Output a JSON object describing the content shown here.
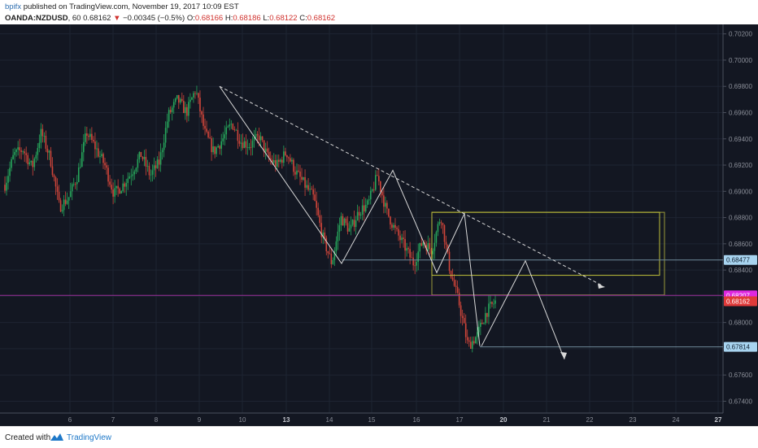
{
  "header": {
    "author": "bpifx",
    "published": "published on TradingView.com, November 19, 2017 10:09 EST",
    "symbol": "OANDA:NZDUSD",
    "interval": ", 60",
    "last": "0.68162",
    "arrow": "▼",
    "change": "−0.00345 (−0.5%)",
    "o_label": "O:",
    "o_value": "0.68166",
    "h_label": "H:",
    "h_value": "0.68186",
    "l_label": "L:",
    "l_value": "0.68122",
    "c_label": "C:",
    "c_value": "0.68162"
  },
  "footer": {
    "created_with": "Created with",
    "brand": "TradingView"
  },
  "colors": {
    "background": "#131722",
    "up": "#26a65b",
    "down": "#d0453a",
    "annotation": "#d8d8d8",
    "zone_box": "#9a9a3a",
    "zone_line": "#c2c23a",
    "magenta_line": "#9c2f9c",
    "badge_blue": "#a8d4f0",
    "badge_magenta": "#e028e0",
    "badge_red": "#e03a3a"
  },
  "chart_data": {
    "type": "candlestick",
    "symbol": "OANDA:NZDUSD",
    "interval": "60",
    "x_tick_labels": [
      "6",
      "7",
      "8",
      "9",
      "10",
      "13",
      "14",
      "15",
      "16",
      "17",
      "20",
      "21",
      "22",
      "23",
      "24",
      "27"
    ],
    "bold_x_ticks": [
      "13",
      "20",
      "27"
    ],
    "y_tick_labels": [
      "0.70200",
      "0.70000",
      "0.69800",
      "0.69600",
      "0.69400",
      "0.69200",
      "0.69000",
      "0.68800",
      "0.68600",
      "0.68400",
      "0.68200",
      "0.68000",
      "0.67800",
      "0.67600",
      "0.67400"
    ],
    "ylim": [
      0.6731,
      0.7026
    ],
    "x_range": [
      "6",
      "27"
    ],
    "grid": true,
    "price_path": [
      [
        "6",
        0.6905
      ],
      [
        "6",
        0.6928
      ],
      [
        "6",
        0.6932
      ],
      [
        "6",
        0.6918
      ],
      [
        "6",
        0.6945
      ],
      [
        "6",
        0.6925
      ],
      [
        "7",
        0.6888
      ],
      [
        "7",
        0.6895
      ],
      [
        "7",
        0.6912
      ],
      [
        "7",
        0.6945
      ],
      [
        "7",
        0.6933
      ],
      [
        "7",
        0.692
      ],
      [
        "8",
        0.6898
      ],
      [
        "8",
        0.6905
      ],
      [
        "8",
        0.6915
      ],
      [
        "8",
        0.6928
      ],
      [
        "8",
        0.6912
      ],
      [
        "9",
        0.6922
      ],
      [
        "9",
        0.6958
      ],
      [
        "9",
        0.697
      ],
      [
        "9",
        0.696
      ],
      [
        "9",
        0.6978
      ],
      [
        "10",
        0.6945
      ],
      [
        "10",
        0.693
      ],
      [
        "10",
        0.694
      ],
      [
        "10",
        0.6952
      ],
      [
        "10",
        0.6938
      ],
      [
        "10",
        0.6935
      ],
      [
        "13",
        0.6942
      ],
      [
        "13",
        0.6925
      ],
      [
        "13",
        0.692
      ],
      [
        "13",
        0.693
      ],
      [
        "13",
        0.6915
      ],
      [
        "14",
        0.6905
      ],
      [
        "14",
        0.6895
      ],
      [
        "14",
        0.6865
      ],
      [
        "14",
        0.6845
      ],
      [
        "15",
        0.688
      ],
      [
        "15",
        0.687
      ],
      [
        "15",
        0.6885
      ],
      [
        "15",
        0.689
      ],
      [
        "15",
        0.6912
      ],
      [
        "16",
        0.6885
      ],
      [
        "16",
        0.687
      ],
      [
        "16",
        0.6858
      ],
      [
        "16",
        0.6845
      ],
      [
        "17",
        0.6862
      ],
      [
        "17",
        0.6855
      ],
      [
        "17",
        0.6882
      ],
      [
        "17",
        0.684
      ],
      [
        "17",
        0.6815
      ],
      [
        "17",
        0.6782
      ],
      [
        "17",
        0.679
      ],
      [
        "17",
        0.6808
      ],
      [
        "17",
        0.6816
      ]
    ],
    "annotations": {
      "trendline_dashed": {
        "from": [
          "9",
          0.698
        ],
        "to": [
          "22",
          0.6828
        ]
      },
      "zig_zag": [
        [
          "9",
          0.698
        ],
        [
          "14",
          0.6845
        ],
        [
          "15",
          0.6916
        ],
        [
          "16",
          0.6838
        ],
        [
          "17",
          0.6883
        ],
        [
          "17",
          0.6782
        ]
      ],
      "projection": [
        [
          "17",
          0.6782
        ],
        [
          "20",
          0.6847
        ],
        [
          "21",
          0.6772
        ]
      ],
      "zone_outer": {
        "top": 0.6884,
        "bottom": 0.6821
      },
      "zone_inner": {
        "top": 0.6884,
        "bottom": 0.6836
      },
      "levels": [
        {
          "price": 0.68477,
          "label": "0.68477",
          "style": "blue"
        },
        {
          "price": 0.68207,
          "label": "0.68207",
          "style": "magenta"
        },
        {
          "price": 0.68162,
          "label": "0.68162",
          "style": "red"
        },
        {
          "price": 0.67814,
          "label": "0.67814",
          "style": "blue"
        }
      ]
    }
  }
}
